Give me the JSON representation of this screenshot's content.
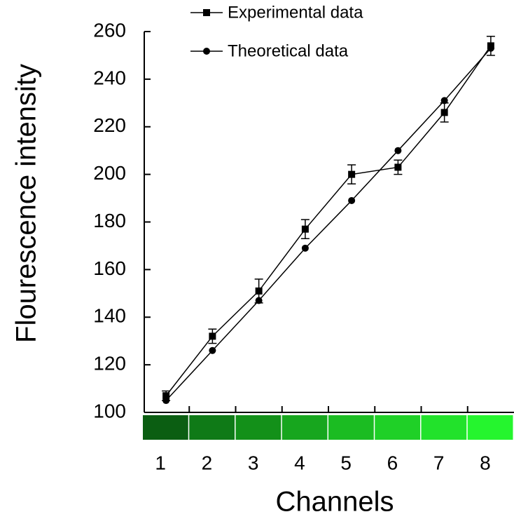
{
  "chart_data": {
    "type": "line",
    "x_label": "Channels",
    "y_label": "Flourescence intensity",
    "categories": [
      "1",
      "2",
      "3",
      "4",
      "5",
      "6",
      "7",
      "8"
    ],
    "series": [
      {
        "name": "Experimental data",
        "color": "#000000",
        "marker": "square",
        "values": [
          107,
          132,
          151,
          177,
          200,
          203,
          226,
          254
        ],
        "errors": [
          2,
          3,
          5,
          4,
          4,
          3,
          4,
          4
        ]
      },
      {
        "name": "Theoretical data",
        "color": "#000000",
        "marker": "circle",
        "values": [
          105,
          126,
          147,
          169,
          189,
          210,
          231,
          253
        ]
      }
    ],
    "strip_colors": [
      "#0b5e12",
      "#0f7a17",
      "#139019",
      "#17a61e",
      "#1bbc22",
      "#1fd027",
      "#22e22b",
      "#25f52e"
    ],
    "ylim": [
      100,
      260
    ],
    "yticks": [
      100,
      120,
      140,
      160,
      180,
      200,
      220,
      240,
      260
    ],
    "legend": "top"
  }
}
